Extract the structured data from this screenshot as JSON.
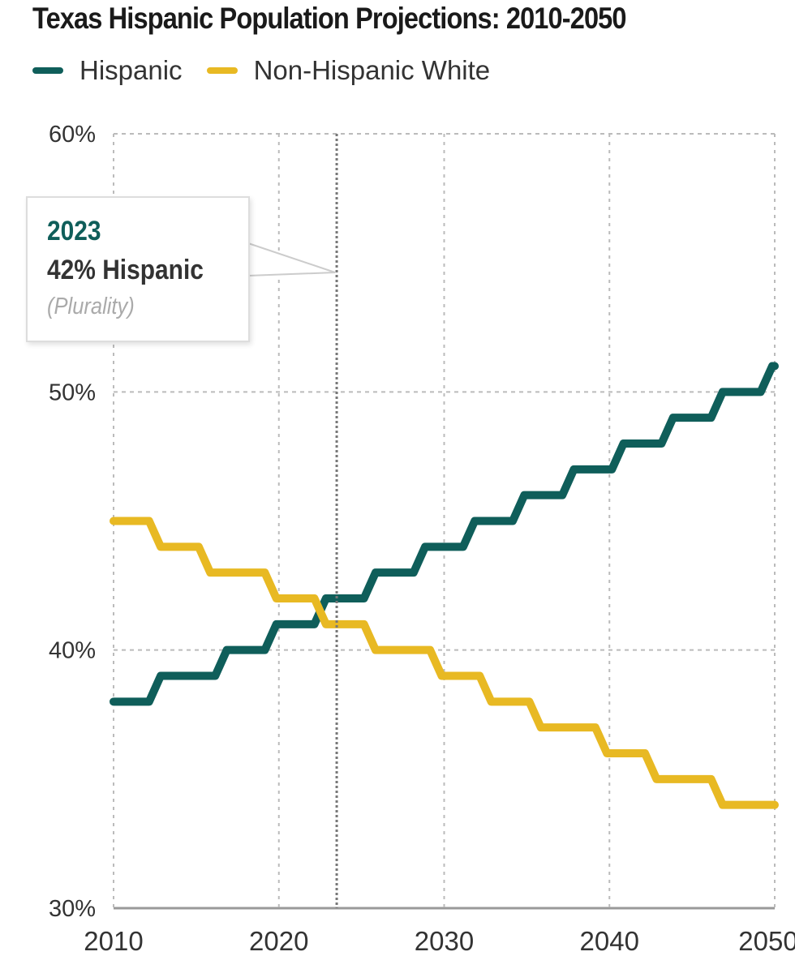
{
  "chart_data": {
    "type": "line",
    "title": "Texas Hispanic Population Projections: 2010-2050",
    "xlabel": "",
    "ylabel": "",
    "xlim": [
      2010,
      2050
    ],
    "ylim": [
      30,
      60
    ],
    "x_ticks": [
      "2010",
      "2020",
      "2030",
      "2040",
      "2050"
    ],
    "y_ticks": [
      "30%",
      "40%",
      "50%",
      "60%"
    ],
    "grid": true,
    "legend_position": "top-left",
    "x": [
      2010,
      2011,
      2012,
      2013,
      2014,
      2015,
      2016,
      2017,
      2018,
      2019,
      2020,
      2021,
      2022,
      2023,
      2024,
      2025,
      2026,
      2027,
      2028,
      2029,
      2030,
      2031,
      2032,
      2033,
      2034,
      2035,
      2036,
      2037,
      2038,
      2039,
      2040,
      2041,
      2042,
      2043,
      2044,
      2045,
      2046,
      2047,
      2048,
      2049,
      2050
    ],
    "series": [
      {
        "name": "Hispanic",
        "color": "#0f5e5a",
        "values": [
          38,
          38,
          38,
          39,
          39,
          39,
          39,
          40,
          40,
          40,
          41,
          41,
          41,
          42,
          42,
          42,
          43,
          43,
          43,
          44,
          44,
          44,
          45,
          45,
          45,
          46,
          46,
          46,
          47,
          47,
          47,
          48,
          48,
          48,
          49,
          49,
          49,
          50,
          50,
          50,
          51
        ]
      },
      {
        "name": "Non-Hispanic White",
        "color": "#e8b923",
        "values": [
          45,
          45,
          45,
          44,
          44,
          44,
          43,
          43,
          43,
          43,
          42,
          42,
          42,
          41,
          41,
          41,
          40,
          40,
          40,
          40,
          39,
          39,
          39,
          38,
          38,
          38,
          37,
          37,
          37,
          37,
          36,
          36,
          36,
          35,
          35,
          35,
          35,
          34,
          34,
          34,
          34
        ]
      }
    ],
    "annotation": {
      "x": 2023.5,
      "year_label": "2023",
      "value_label": "42% Hispanic",
      "note": "(Plurality)"
    }
  }
}
